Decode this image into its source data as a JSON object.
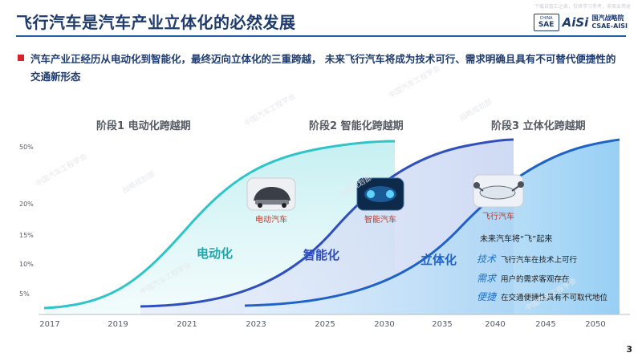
{
  "title": "飞行汽车是汽车产业立体化的必然发展",
  "top_note": "下载自智汇之家，仅供学习参考，非商业用途",
  "logo": {
    "badge_top": "CHINA",
    "badge_main": "SAE",
    "aisi": "AiSi",
    "org_cn": "国汽战略院",
    "org_en": "CSAE-AISI"
  },
  "intro": "汽车产业正经历从电动化到智能化，最终迈向立体化的三重跨越，  未来飞行汽车将成为技术可行、需求明确且具有不可替代便捷性的交通新形态",
  "stages": [
    "阶段1 电动化跨越期",
    "阶段2 智能化跨越期",
    "阶段3 立体化跨越期"
  ],
  "chart_data": {
    "type": "area",
    "x_ticks": [
      "2017",
      "2019",
      "2021",
      "2023",
      "2025",
      "2030",
      "2035",
      "2040",
      "2045",
      "2050"
    ],
    "y_ticks": [
      "50%",
      "20%",
      "15%",
      "10%",
      "5%"
    ],
    "series": [
      {
        "name": "电动化",
        "color": "#2ec4c9"
      },
      {
        "name": "智能化",
        "color": "#2f57c4"
      },
      {
        "name": "立体化",
        "color": "#1f8fe0"
      }
    ],
    "car_labels": [
      "电动汽车",
      "智能汽车",
      "飞行汽车"
    ]
  },
  "legend": {
    "title": "未来汽车将“飞”起来",
    "items": [
      {
        "key": "技术",
        "text": "飞行汽车在技术上可行"
      },
      {
        "key": "需求",
        "text": "用户的需求客观存在"
      },
      {
        "key": "便捷",
        "text": "在交通便捷性具有不可取代地位"
      }
    ]
  },
  "watermark": "中国汽车工程学会",
  "watermark2": "战略规划部",
  "page_number": "3"
}
